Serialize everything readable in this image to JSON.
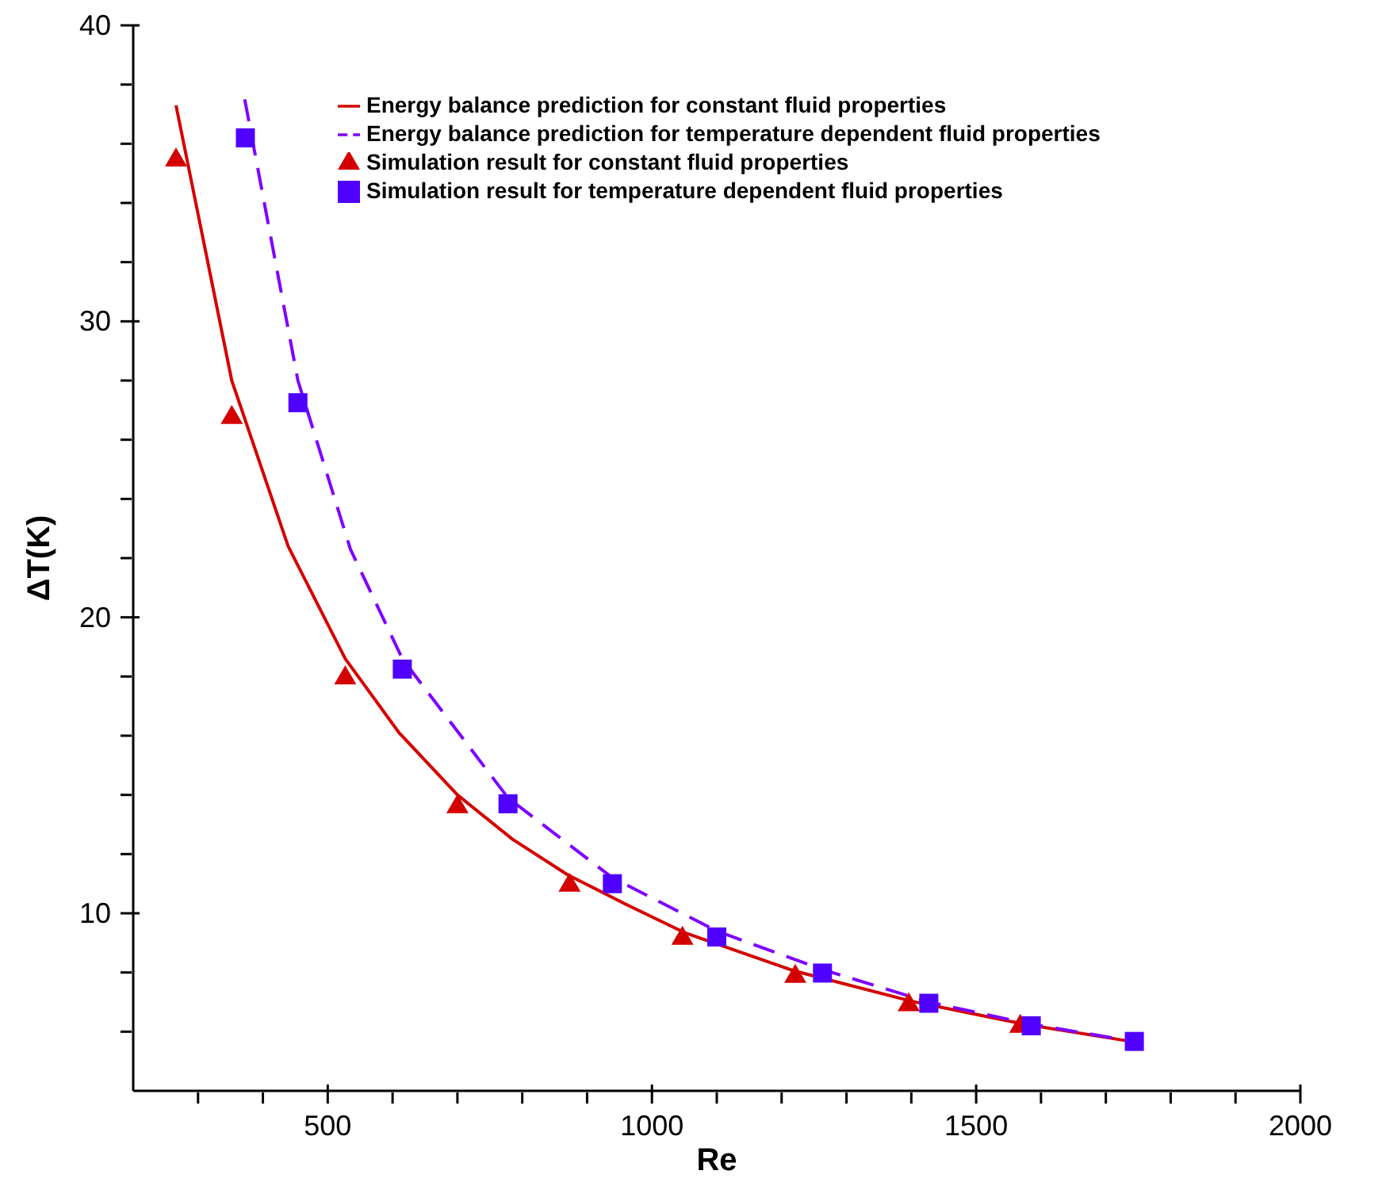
{
  "chart_data": {
    "type": "line",
    "xlabel": "Re",
    "ylabel": "ΔT(K)",
    "xlim": [
      200,
      2000
    ],
    "xticks": [
      {
        "value": 300,
        "label": null
      },
      {
        "value": 400,
        "label": null
      },
      500,
      {
        "value": 600,
        "label": null
      },
      {
        "value": 700,
        "label": null
      },
      {
        "value": 800,
        "label": null
      },
      {
        "value": 900,
        "label": null
      },
      1000,
      {
        "value": 1100,
        "label": null
      },
      {
        "value": 1200,
        "label": null
      },
      {
        "value": 1300,
        "label": null
      },
      {
        "value": 1400,
        "label": null
      },
      1500,
      {
        "value": 1600,
        "label": null
      },
      {
        "value": 1700,
        "label": null
      },
      {
        "value": 1800,
        "label": null
      },
      {
        "value": 1900,
        "label": null
      },
      2000
    ],
    "ylim": [
      4,
      40
    ],
    "yticks": [
      {
        "value": 6,
        "label": null
      },
      {
        "value": 8,
        "label": null
      },
      10,
      {
        "value": 12,
        "label": null
      },
      {
        "value": 14,
        "label": null
      },
      {
        "value": 16,
        "label": null
      },
      {
        "value": 18,
        "label": null
      },
      20,
      {
        "value": 22,
        "label": null
      },
      {
        "value": 24,
        "label": null
      },
      {
        "value": 26,
        "label": null
      },
      {
        "value": 28,
        "label": null
      },
      30,
      {
        "value": 32,
        "label": null
      },
      {
        "value": 34,
        "label": null
      },
      {
        "value": 36,
        "label": null
      },
      {
        "value": 38,
        "label": null
      },
      40
    ],
    "grid": false,
    "legend": "top right",
    "series": [
      {
        "name": "Energy balance prediction for constant fluid properties",
        "color": "#d40000",
        "line_style": "solid",
        "marker": "none",
        "x": [
          266,
          352,
          439,
          527,
          610,
          700,
          785,
          870,
          960,
          1050,
          1220,
          1400,
          1575,
          1750
        ],
        "values": [
          37.3,
          28.0,
          22.4,
          18.6,
          16.1,
          14.0,
          12.5,
          11.3,
          10.3,
          9.35,
          8.05,
          7.03,
          6.25,
          5.63
        ]
      },
      {
        "name": "Simulation result for constant fluid properties",
        "type": "scatter",
        "color": "#d40000",
        "marker": "triangle",
        "x": [
          266,
          352,
          527,
          700,
          873,
          1047,
          1221,
          1396,
          1568
        ],
        "values": [
          35.5,
          26.8,
          18.0,
          13.65,
          11.0,
          9.2,
          7.92,
          6.96,
          6.23
        ]
      },
      {
        "name": "Energy balance prediction for temperature dependent fluid properties",
        "color": "#7f00ff",
        "line_style": "dashed",
        "marker": "none",
        "x": [
          372,
          454,
          535,
          615,
          778,
          939,
          1100,
          1263,
          1427,
          1585,
          1744
        ],
        "values": [
          37.5,
          28.0,
          22.3,
          18.6,
          13.9,
          11.2,
          9.4,
          8.1,
          7.0,
          6.25,
          5.67
        ]
      },
      {
        "name": "Simulation result for temperature dependent fluid properties",
        "type": "scatter",
        "color": "#5000ff",
        "marker": "square",
        "x": [
          373,
          454,
          615,
          778,
          939,
          1100,
          1263,
          1427,
          1585,
          1744
        ],
        "values": [
          36.2,
          27.25,
          18.25,
          13.7,
          11.0,
          9.2,
          7.98,
          6.96,
          6.2,
          5.67
        ]
      }
    ]
  }
}
